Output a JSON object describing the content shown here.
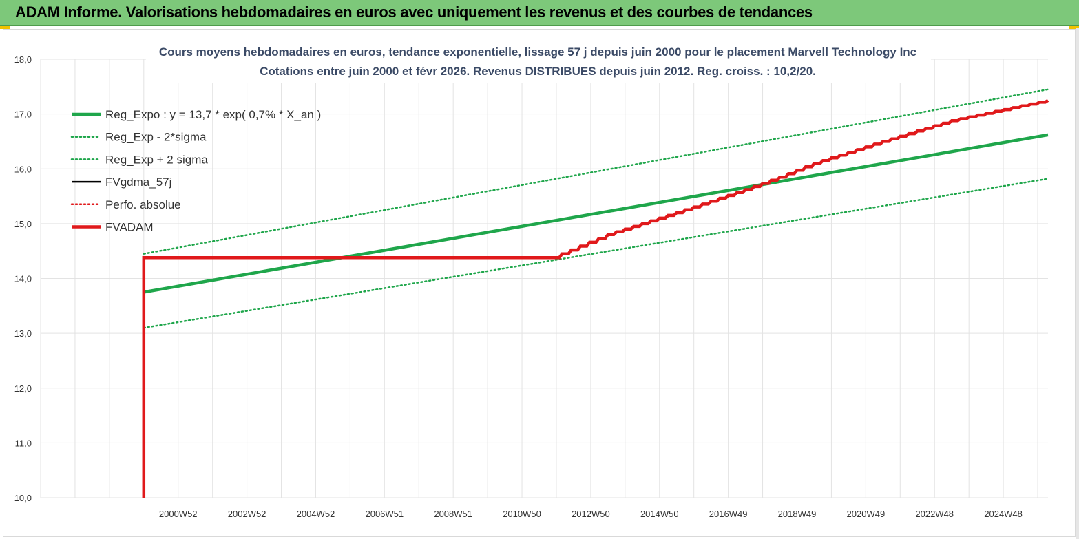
{
  "header": {
    "title": "ADAM Informe. Valorisations hebdomadaires en euros avec uniquement les revenus et des courbes de tendances"
  },
  "colors": {
    "banner": "#7dc87a",
    "green": "#1fa64b",
    "red": "#e0191b",
    "black": "#000000",
    "title_text": "#3b4a66"
  },
  "chart_data": {
    "type": "line",
    "title": "Cours moyens hebdomadaires en euros, tendance exponentielle, lissage 57 j depuis juin 2000 pour le placement Marvell Technology Inc",
    "subtitle": "Cotations entre juin 2000 et févr 2026. Revenus DISTRIBUES depuis juin 2012. Reg. croiss. : 10,2/20.",
    "xlabel": "",
    "ylabel": "",
    "ylim": [
      10,
      18
    ],
    "yticks": [
      "10,0",
      "11,0",
      "12,0",
      "13,0",
      "14,0",
      "15,0",
      "16,0",
      "17,0",
      "18,0"
    ],
    "xlim": [
      1997.5,
      2026.8
    ],
    "xticks": [
      {
        "x": 2000.5,
        "label": "2000W52"
      },
      {
        "x": 2002.5,
        "label": "2002W52"
      },
      {
        "x": 2004.5,
        "label": "2004W52"
      },
      {
        "x": 2006.5,
        "label": "2006W51"
      },
      {
        "x": 2008.5,
        "label": "2008W51"
      },
      {
        "x": 2010.5,
        "label": "2010W50"
      },
      {
        "x": 2012.5,
        "label": "2012W50"
      },
      {
        "x": 2014.5,
        "label": "2014W50"
      },
      {
        "x": 2016.5,
        "label": "2016W49"
      },
      {
        "x": 2018.5,
        "label": "2018W49"
      },
      {
        "x": 2020.5,
        "label": "2020W49"
      },
      {
        "x": 2022.5,
        "label": "2022W48"
      },
      {
        "x": 2024.5,
        "label": "2024W48"
      }
    ],
    "grid": true,
    "legend_position": "top-left",
    "series": [
      {
        "name": "Reg_Expo : y = 13,7 * exp( 0,7% *  X_an )",
        "style": "solid-thick",
        "color": "#1fa64b",
        "x": [
          2000.5,
          2026.8
        ],
        "y": [
          13.75,
          16.62
        ]
      },
      {
        "name": "Reg_Exp - 2*sigma",
        "style": "dotted",
        "color": "#1fa64b",
        "x": [
          2000.5,
          2026.8
        ],
        "y": [
          13.1,
          15.82
        ]
      },
      {
        "name": "Reg_Exp + 2 sigma",
        "style": "dotted",
        "color": "#1fa64b",
        "x": [
          2000.5,
          2026.8
        ],
        "y": [
          14.45,
          17.45
        ]
      },
      {
        "name": "FVgdma_57j",
        "style": "solid",
        "color": "#000000",
        "x": [],
        "y": []
      },
      {
        "name": "Perfo. absolue",
        "style": "dotted",
        "color": "#e0191b",
        "x": [],
        "y": []
      },
      {
        "name": "FVADAM",
        "style": "solid-thick",
        "color": "#e0191b",
        "x": [
          2000.5,
          2000.5,
          2012.4,
          2014.0,
          2016.0,
          2018.0,
          2019.0,
          2020.0,
          2022.0,
          2024.0,
          2026.8
        ],
        "y": [
          10.0,
          14.38,
          14.38,
          14.8,
          15.2,
          15.62,
          15.85,
          16.1,
          16.5,
          16.88,
          17.25
        ]
      }
    ]
  }
}
